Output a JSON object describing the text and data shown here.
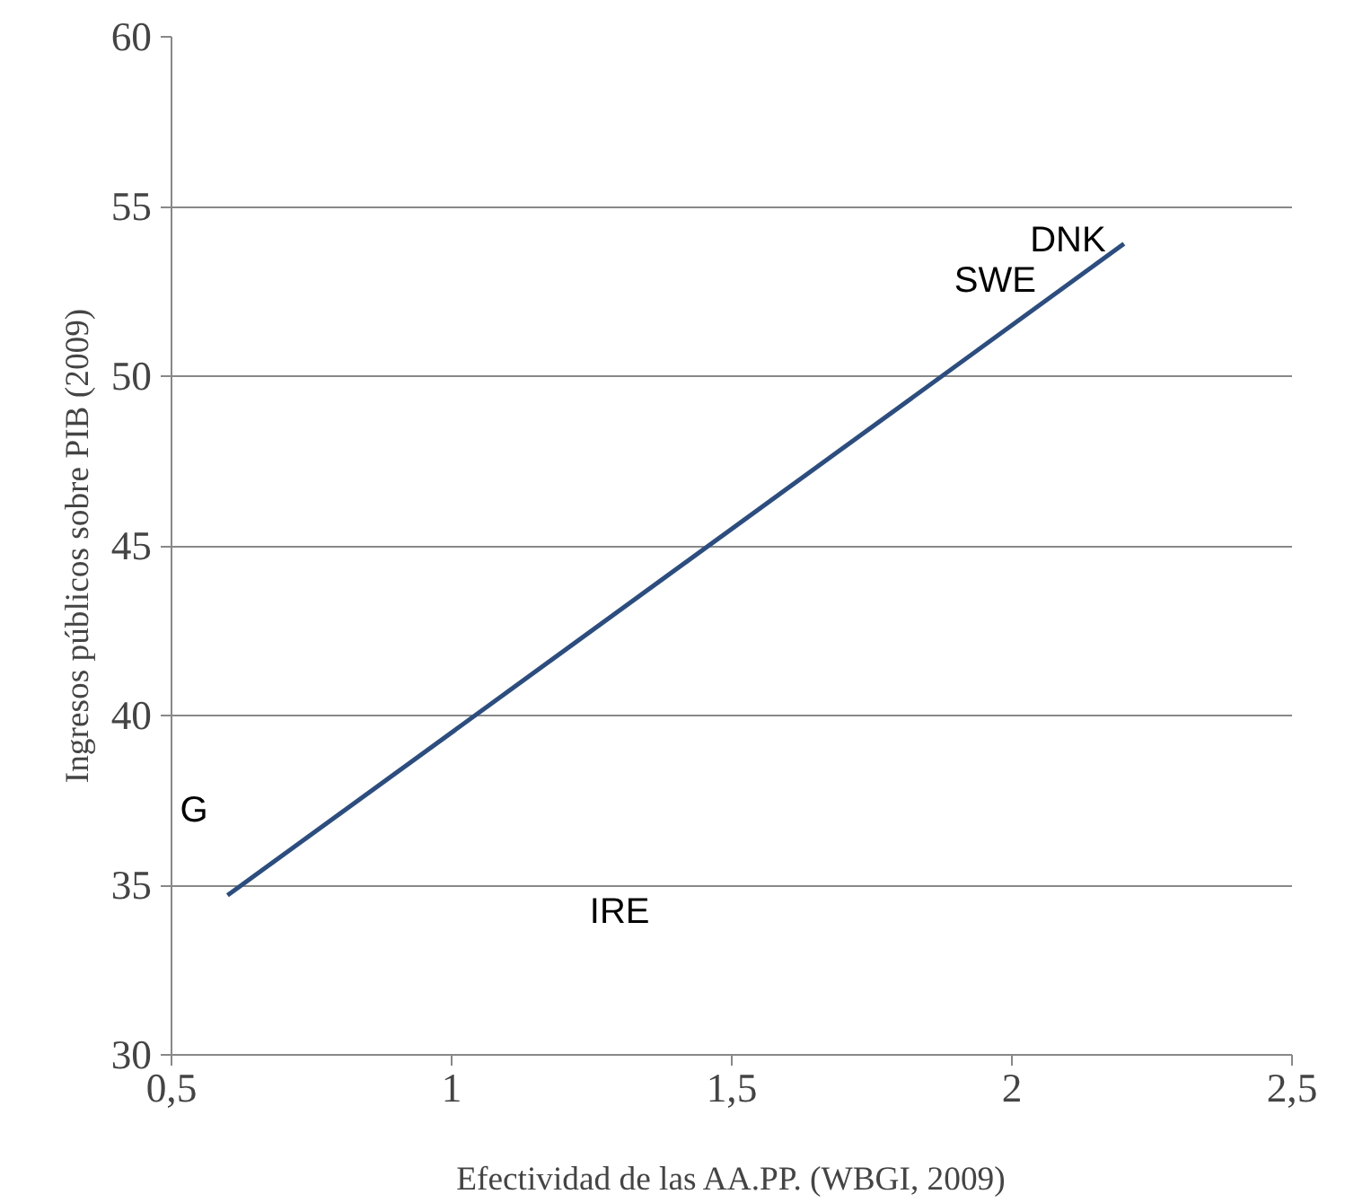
{
  "chart_data": {
    "type": "line",
    "xlabel": "Efectividad de las AA.PP. (WBGI, 2009)",
    "ylabel": "Ingresos públicos sobre PIB (2009)",
    "xlim": [
      0.5,
      2.5
    ],
    "ylim": [
      30,
      60
    ],
    "xticks": [
      {
        "value": 0.5,
        "label": "0,5"
      },
      1,
      {
        "value": 1.5,
        "label": "1,5"
      },
      2,
      {
        "value": 2.5,
        "label": "2,5"
      }
    ],
    "yticks": [
      30,
      35,
      40,
      45,
      50,
      55,
      60
    ],
    "grid": "y",
    "marker": "none",
    "line_style": "solid",
    "series": [
      {
        "color": "#2c4d7e",
        "x": [
          0.6,
          2.2
        ],
        "values": [
          34.7,
          53.9
        ]
      }
    ],
    "annotations": [
      "DNK",
      "SWE",
      "G",
      "IRE"
    ]
  }
}
